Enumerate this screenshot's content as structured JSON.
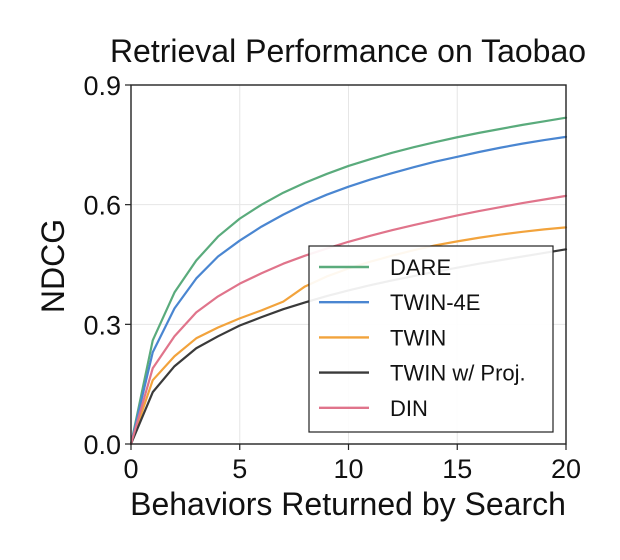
{
  "chart_data": {
    "type": "line",
    "title": "Retrieval Performance on Taobao",
    "xlabel": "Behaviors Returned by Search",
    "ylabel": "NDCG",
    "xlim": [
      0,
      20
    ],
    "ylim": [
      0,
      0.9
    ],
    "xticks": [
      0,
      5,
      10,
      15,
      20
    ],
    "yticks": [
      0.0,
      0.3,
      0.6,
      0.9
    ],
    "xtick_labels": [
      "0",
      "5",
      "10",
      "15",
      "20"
    ],
    "ytick_labels": [
      "0.0",
      "0.3",
      "0.6",
      "0.9"
    ],
    "grid": true,
    "legend_position": "lower-right",
    "x": [
      0,
      1,
      2,
      3,
      4,
      5,
      6,
      7,
      8,
      9,
      10,
      11,
      12,
      13,
      14,
      15,
      16,
      17,
      18,
      19,
      20
    ],
    "series": [
      {
        "name": "DARE",
        "color": "#5aab7c",
        "values": [
          0.0,
          0.26,
          0.38,
          0.46,
          0.52,
          0.565,
          0.6,
          0.63,
          0.655,
          0.677,
          0.697,
          0.714,
          0.73,
          0.744,
          0.757,
          0.769,
          0.78,
          0.79,
          0.8,
          0.809,
          0.818
        ]
      },
      {
        "name": "TWIN-4E",
        "color": "#4a86d1",
        "values": [
          0.0,
          0.23,
          0.34,
          0.415,
          0.47,
          0.51,
          0.545,
          0.575,
          0.602,
          0.625,
          0.645,
          0.663,
          0.679,
          0.694,
          0.708,
          0.72,
          0.732,
          0.743,
          0.753,
          0.762,
          0.77
        ]
      },
      {
        "name": "TWIN",
        "color": "#f2a33c",
        "values": [
          0.0,
          0.16,
          0.22,
          0.265,
          0.292,
          0.315,
          0.335,
          0.357,
          0.395,
          0.42,
          0.44,
          0.457,
          0.472,
          0.486,
          0.498,
          0.508,
          0.517,
          0.525,
          0.532,
          0.538,
          0.543
        ]
      },
      {
        "name": "TWIN w/ Proj.",
        "color": "#3a3a3a",
        "values": [
          0.0,
          0.13,
          0.195,
          0.24,
          0.27,
          0.297,
          0.318,
          0.338,
          0.355,
          0.371,
          0.385,
          0.398,
          0.41,
          0.421,
          0.432,
          0.442,
          0.452,
          0.461,
          0.47,
          0.479,
          0.488
        ]
      },
      {
        "name": "DIN",
        "color": "#e0748b",
        "values": [
          0.0,
          0.19,
          0.27,
          0.33,
          0.37,
          0.402,
          0.428,
          0.452,
          0.472,
          0.49,
          0.507,
          0.522,
          0.536,
          0.549,
          0.561,
          0.573,
          0.584,
          0.594,
          0.604,
          0.613,
          0.622
        ]
      }
    ]
  }
}
